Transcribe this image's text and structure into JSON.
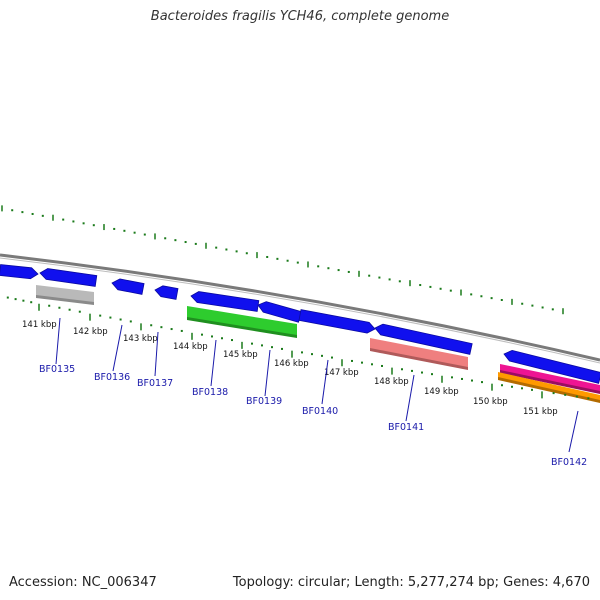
{
  "title": "Bacteroides fragilis YCH46, complete genome",
  "footer": {
    "accession": "Accession: NC_006347",
    "summary": "Topology: circular; Length: 5,277,274 bp; Genes: 4,670"
  },
  "colors": {
    "cds": "#1010ee",
    "tick": "#1a7a1a",
    "backbone": "#7a7a7a",
    "gene_label": "#1a1aaa",
    "track_gray": "#b9b9b9",
    "track_green": "#2ecc2e",
    "track_salmon": "#ef7f7f",
    "track_magenta": "#ee1493",
    "track_orange": "#ff9900"
  },
  "kbp_labels": [
    "141 kbp",
    "142 kbp",
    "143 kbp",
    "144 kbp",
    "145 kbp",
    "146 kbp",
    "147 kbp",
    "148 kbp",
    "149 kbp",
    "150 kbp",
    "151 kbp"
  ],
  "genes": [
    "BF0135",
    "BF0136",
    "BF0137",
    "BF0138",
    "BF0139",
    "BF0140",
    "BF0141",
    "BF0142"
  ]
}
